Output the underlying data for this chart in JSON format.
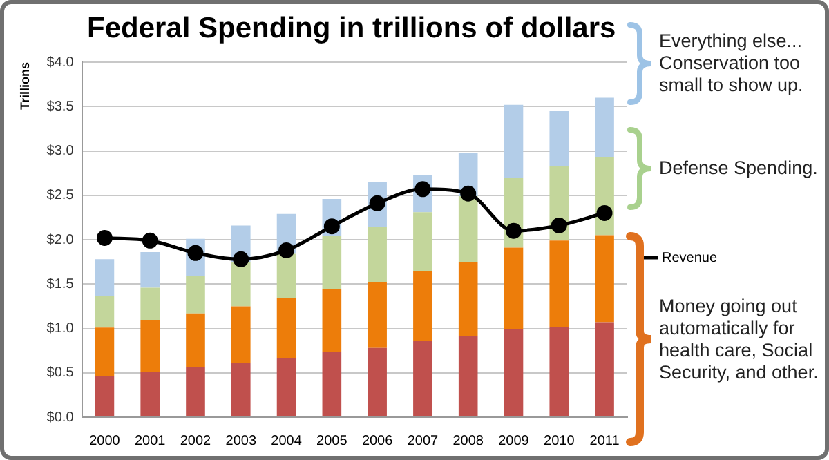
{
  "chart_data": {
    "type": "bar",
    "title": "Federal Spending in trillions of dollars",
    "ylabel": "Trillions",
    "categories": [
      "2000",
      "2001",
      "2002",
      "2003",
      "2004",
      "2005",
      "2006",
      "2007",
      "2008",
      "2009",
      "2010",
      "2011"
    ],
    "stacked": true,
    "series": [
      {
        "color": "#c0504d",
        "values": [
          0.46,
          0.51,
          0.56,
          0.61,
          0.67,
          0.74,
          0.78,
          0.86,
          0.91,
          0.99,
          1.02,
          1.07
        ]
      },
      {
        "color": "#ed7d0a",
        "values": [
          0.55,
          0.58,
          0.61,
          0.64,
          0.67,
          0.7,
          0.74,
          0.79,
          0.84,
          0.92,
          0.97,
          0.98
        ]
      },
      {
        "color": "#c3d69b",
        "values": [
          0.36,
          0.37,
          0.42,
          0.5,
          0.5,
          0.6,
          0.62,
          0.66,
          0.74,
          0.79,
          0.84,
          0.88
        ]
      },
      {
        "color": "#b3cde8",
        "values": [
          0.41,
          0.4,
          0.42,
          0.41,
          0.45,
          0.42,
          0.51,
          0.42,
          0.49,
          0.82,
          0.62,
          0.67
        ]
      },
      {
        "type": "line",
        "name": "Revenue",
        "color": "#000000",
        "values": [
          2.02,
          1.99,
          1.85,
          1.78,
          1.88,
          2.15,
          2.41,
          2.57,
          2.52,
          2.1,
          2.16,
          2.3
        ]
      }
    ],
    "ylim": [
      0,
      4
    ],
    "yticks": [
      {
        "value": 0,
        "label": "$0.0"
      },
      {
        "value": 0.5,
        "label": "$0.5"
      },
      {
        "value": 1,
        "label": "$1.0"
      },
      {
        "value": 1.5,
        "label": "$1.5"
      },
      {
        "value": 2,
        "label": "$2.0"
      },
      {
        "value": 2.5,
        "label": "$2.5"
      },
      {
        "value": 3,
        "label": "$3.0"
      },
      {
        "value": 3.5,
        "label": "$3.5"
      },
      {
        "value": 4,
        "label": "$4.0"
      }
    ],
    "grid": "y",
    "legend": "right",
    "marker": "circle",
    "annotations": [
      "Everything else... Conservation too small to show up.",
      "Defense Spending.",
      "Money going out automatically for health care, Social Security, and other."
    ]
  }
}
